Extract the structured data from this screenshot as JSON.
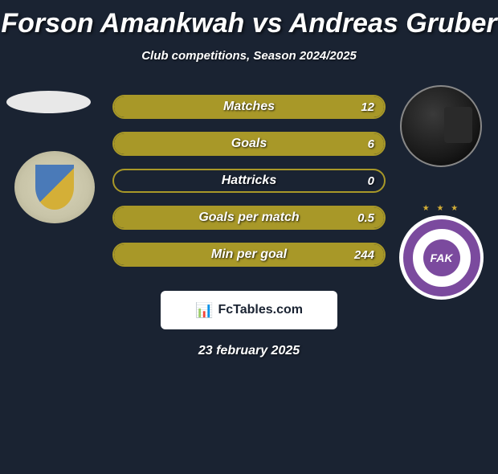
{
  "title": "Forson Amankwah vs Andreas Gruber",
  "subtitle": "Club competitions, Season 2024/2025",
  "footer_brand": "FcTables.com",
  "footer_date": "23 february 2025",
  "colors": {
    "background": "#1a2332",
    "bar_border": "#a89828",
    "bar_fill": "#a89828",
    "badge_right_purple": "#7b4a9e"
  },
  "stats": [
    {
      "label": "Matches",
      "left_value": "",
      "right_value": "12",
      "fill_pct": 100
    },
    {
      "label": "Goals",
      "left_value": "",
      "right_value": "6",
      "fill_pct": 100
    },
    {
      "label": "Hattricks",
      "left_value": "",
      "right_value": "0",
      "fill_pct": 0
    },
    {
      "label": "Goals per match",
      "left_value": "",
      "right_value": "0.5",
      "fill_pct": 100
    },
    {
      "label": "Min per goal",
      "left_value": "",
      "right_value": "244",
      "fill_pct": 100
    }
  ],
  "badge_right_center": "FAK"
}
